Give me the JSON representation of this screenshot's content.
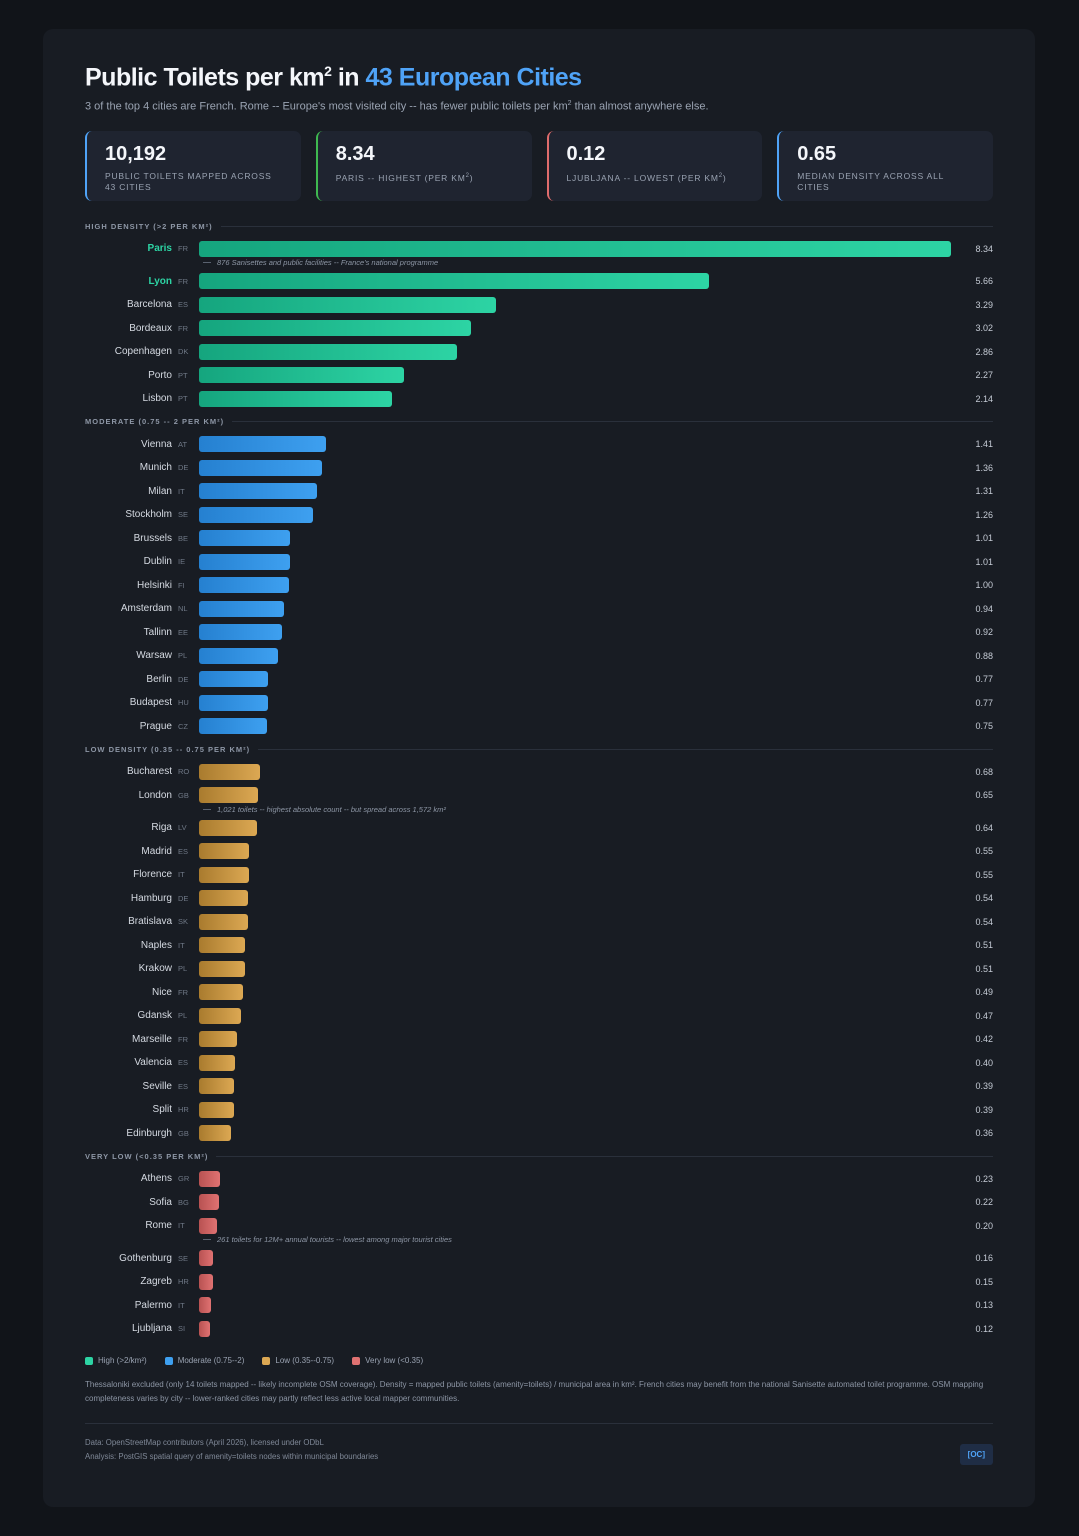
{
  "header": {
    "title_main": "Public Toilets per km",
    "title_sup": "2",
    "title_in": " in ",
    "title_accent": "43 European Cities",
    "subtitle_a": "3 of the top 4 cities are French. Rome -- Europe's most visited city -- has fewer public toilets per km",
    "subtitle_sup": "2",
    "subtitle_b": " than almost anywhere else."
  },
  "stats": [
    {
      "value": "10,192",
      "label": "Public toilets mapped across 43 cities",
      "sup": "",
      "label_tail": "",
      "color": "#4fa3f7"
    },
    {
      "value": "8.34",
      "label": "Paris -- highest (per km",
      "sup": "2",
      "label_tail": ")",
      "color": "#3fb950"
    },
    {
      "value": "0.12",
      "label": "Ljubljana -- lowest (per km",
      "sup": "2",
      "label_tail": ")",
      "color": "#e06c6c"
    },
    {
      "value": "0.65",
      "label": "Median density across all cities",
      "sup": "",
      "label_tail": "",
      "color": "#4fa3f7"
    }
  ],
  "chart_data": {
    "type": "bar",
    "orientation": "horizontal",
    "xlim": [
      0,
      8.34
    ],
    "sections": [
      {
        "label": "HIGH DENSITY (>2 PER KM²)",
        "colors": [
          "#15a57e",
          "#2dd4a4"
        ],
        "cities": [
          {
            "name": "Paris",
            "country": "FR",
            "value": 8.34,
            "highlight": true,
            "note": "876 Sanisettes and public facilities -- France's national programme"
          },
          {
            "name": "Lyon",
            "country": "FR",
            "value": 5.66,
            "highlight": true
          },
          {
            "name": "Barcelona",
            "country": "ES",
            "value": 3.29
          },
          {
            "name": "Bordeaux",
            "country": "FR",
            "value": 3.02
          },
          {
            "name": "Copenhagen",
            "country": "DK",
            "value": 2.86
          },
          {
            "name": "Porto",
            "country": "PT",
            "value": 2.27
          },
          {
            "name": "Lisbon",
            "country": "PT",
            "value": 2.14
          }
        ]
      },
      {
        "label": "MODERATE (0.75 -- 2 PER KM²)",
        "colors": [
          "#2580d0",
          "#3ea0f0"
        ],
        "cities": [
          {
            "name": "Vienna",
            "country": "AT",
            "value": 1.41
          },
          {
            "name": "Munich",
            "country": "DE",
            "value": 1.36
          },
          {
            "name": "Milan",
            "country": "IT",
            "value": 1.31
          },
          {
            "name": "Stockholm",
            "country": "SE",
            "value": 1.26
          },
          {
            "name": "Brussels",
            "country": "BE",
            "value": 1.01
          },
          {
            "name": "Dublin",
            "country": "IE",
            "value": 1.01
          },
          {
            "name": "Helsinki",
            "country": "FI",
            "value": 1.0
          },
          {
            "name": "Amsterdam",
            "country": "NL",
            "value": 0.94
          },
          {
            "name": "Tallinn",
            "country": "EE",
            "value": 0.92
          },
          {
            "name": "Warsaw",
            "country": "PL",
            "value": 0.88
          },
          {
            "name": "Berlin",
            "country": "DE",
            "value": 0.77
          },
          {
            "name": "Budapest",
            "country": "HU",
            "value": 0.77
          },
          {
            "name": "Prague",
            "country": "CZ",
            "value": 0.75
          }
        ]
      },
      {
        "label": "LOW DENSITY (0.35 -- 0.75 PER KM²)",
        "colors": [
          "#a97b2e",
          "#dca853"
        ],
        "cities": [
          {
            "name": "Bucharest",
            "country": "RO",
            "value": 0.68
          },
          {
            "name": "London",
            "country": "GB",
            "value": 0.65,
            "note": "1,021 toilets -- highest absolute count -- but spread across 1,572 km²"
          },
          {
            "name": "Riga",
            "country": "LV",
            "value": 0.64
          },
          {
            "name": "Madrid",
            "country": "ES",
            "value": 0.55
          },
          {
            "name": "Florence",
            "country": "IT",
            "value": 0.55
          },
          {
            "name": "Hamburg",
            "country": "DE",
            "value": 0.54
          },
          {
            "name": "Bratislava",
            "country": "SK",
            "value": 0.54
          },
          {
            "name": "Naples",
            "country": "IT",
            "value": 0.51
          },
          {
            "name": "Krakow",
            "country": "PL",
            "value": 0.51
          },
          {
            "name": "Nice",
            "country": "FR",
            "value": 0.49
          },
          {
            "name": "Gdansk",
            "country": "PL",
            "value": 0.47
          },
          {
            "name": "Marseille",
            "country": "FR",
            "value": 0.42
          },
          {
            "name": "Valencia",
            "country": "ES",
            "value": 0.4
          },
          {
            "name": "Seville",
            "country": "ES",
            "value": 0.39
          },
          {
            "name": "Split",
            "country": "HR",
            "value": 0.39
          },
          {
            "name": "Edinburgh",
            "country": "GB",
            "value": 0.36
          }
        ]
      },
      {
        "label": "VERY LOW (<0.35 PER KM²)",
        "colors": [
          "#b85252",
          "#e07272"
        ],
        "cities": [
          {
            "name": "Athens",
            "country": "GR",
            "value": 0.23
          },
          {
            "name": "Sofia",
            "country": "BG",
            "value": 0.22
          },
          {
            "name": "Rome",
            "country": "IT",
            "value": 0.2,
            "note": "261 toilets for 12M+ annual tourists -- lowest among major tourist cities"
          },
          {
            "name": "Gothenburg",
            "country": "SE",
            "value": 0.16
          },
          {
            "name": "Zagreb",
            "country": "HR",
            "value": 0.15
          },
          {
            "name": "Palermo",
            "country": "IT",
            "value": 0.13
          },
          {
            "name": "Ljubljana",
            "country": "SI",
            "value": 0.12
          }
        ]
      }
    ],
    "legend": [
      {
        "label": "High (>2/km²)",
        "color": "#2dd4a4"
      },
      {
        "label": "Moderate (0.75--2)",
        "color": "#3ea0f0"
      },
      {
        "label": "Low (0.35--0.75)",
        "color": "#dca853"
      },
      {
        "label": "Very low (<0.35)",
        "color": "#e07272"
      }
    ]
  },
  "footnote": "Thessaloniki excluded (only 14 toilets mapped -- likely incomplete OSM coverage). Density = mapped public toilets (amenity=toilets) / municipal area in km². French cities may benefit from the national Sanisette automated toilet programme. OSM mapping completeness varies by city -- lower-ranked cities may partly reflect less active local mapper communities.",
  "source": {
    "data": "Data: OpenStreetMap contributors (April 2026), licensed under ODbL",
    "analysis": "Analysis: PostGIS spatial query of amenity=toilets nodes within municipal boundaries",
    "badge": "[OC]"
  }
}
